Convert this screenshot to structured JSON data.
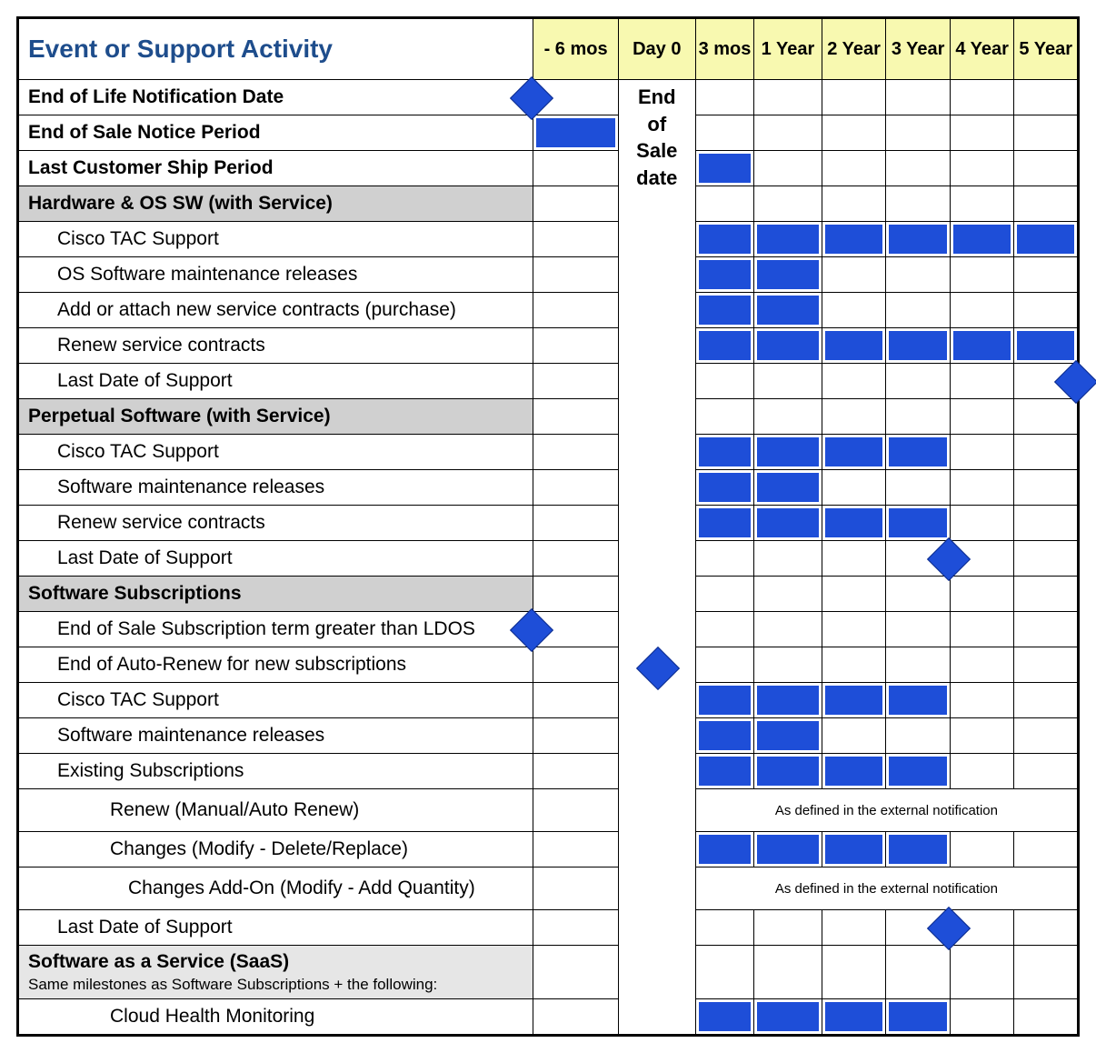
{
  "colors": {
    "header_bg": "#f8f9b0",
    "bar": "#1e4ed8",
    "section": "#d0d0d0",
    "section_light": "#e6e6e6",
    "title": "#1e4d8c",
    "border": "#000000",
    "bg": "#ffffff"
  },
  "title": "Event or Support Activity",
  "columns": [
    "- 6 mos",
    "Day 0",
    "3 mos",
    "1 Year",
    "2 Year",
    "3 Year",
    "4 Year",
    "5 Year"
  ],
  "day0_label": "End of Sale date",
  "note": "As defined in the external notification",
  "rows": [
    {
      "label": "End of Life Notification Date",
      "bold": true,
      "diamond": {
        "col": 0,
        "pos": "left"
      }
    },
    {
      "label": "End of Sale Notice Period",
      "bold": true,
      "bars": [
        0
      ]
    },
    {
      "label": "Last Customer Ship Period",
      "bold": true,
      "bars": [
        2
      ]
    },
    {
      "label": "Hardware & OS SW (with Service)",
      "section": true,
      "bold": true
    },
    {
      "label": "Cisco TAC Support",
      "indent": 1,
      "bars": [
        2,
        3,
        4,
        5,
        6,
        7
      ]
    },
    {
      "label": "OS Software maintenance releases",
      "indent": 1,
      "bars": [
        2,
        3
      ]
    },
    {
      "label": "Add or attach new service contracts (purchase)",
      "indent": 1,
      "bars": [
        2,
        3
      ]
    },
    {
      "label": "Renew service contracts",
      "indent": 1,
      "bars": [
        2,
        3,
        4,
        5,
        6,
        7
      ]
    },
    {
      "label": "Last Date of Support",
      "indent": 1,
      "diamond": {
        "col": 7,
        "pos": "right"
      }
    },
    {
      "label": "Perpetual Software (with Service)",
      "section": true,
      "bold": true
    },
    {
      "label": "Cisco TAC Support",
      "indent": 1,
      "bars": [
        2,
        3,
        4,
        5
      ]
    },
    {
      "label": "Software maintenance releases",
      "indent": 1,
      "bars": [
        2,
        3
      ]
    },
    {
      "label": "Renew service contracts",
      "indent": 1,
      "bars": [
        2,
        3,
        4,
        5
      ]
    },
    {
      "label": "Last Date of Support",
      "indent": 1,
      "diamond": {
        "col": 5,
        "pos": "right"
      }
    },
    {
      "label": "Software Subscriptions",
      "section": true,
      "bold": true
    },
    {
      "label": "End of Sale Subscription term greater than LDOS",
      "indent": 1,
      "diamond": {
        "col": 0,
        "pos": "left"
      }
    },
    {
      "label": "End of Auto-Renew for new subscriptions",
      "indent": 1,
      "diamond": {
        "col": 1,
        "pos": "center",
        "between": true
      }
    },
    {
      "label": "Cisco TAC Support",
      "indent": 1,
      "bars": [
        2,
        3,
        4,
        5
      ]
    },
    {
      "label": "Software maintenance releases",
      "indent": 1,
      "bars": [
        2,
        3
      ]
    },
    {
      "label": "Existing Subscriptions",
      "indent": 1,
      "bars": [
        2,
        3,
        4,
        5
      ]
    },
    {
      "label": "Renew (Manual/Auto Renew)",
      "indent": 2,
      "noteSpan": true
    },
    {
      "label": "Changes (Modify - Delete/Replace)",
      "indent": 2,
      "bars": [
        2,
        3,
        4,
        5
      ]
    },
    {
      "label": "Changes Add-On (Modify - Add Quantity)",
      "indent": 3,
      "noteSpan": true
    },
    {
      "label": "Last Date of Support",
      "indent": 1,
      "diamond": {
        "col": 5,
        "pos": "right"
      }
    },
    {
      "label": "Software as a Service (SaaS)",
      "section": true,
      "light": true,
      "bold": true,
      "sub": "Same milestones as Software Subscriptions + the following:",
      "tall": true
    },
    {
      "label": "Cloud Health Monitoring",
      "indent": 2,
      "bars": [
        2,
        3,
        4,
        5
      ]
    }
  ],
  "day0_merge": {
    "start": 0,
    "span": 26
  },
  "diamond_between_row": 17
}
